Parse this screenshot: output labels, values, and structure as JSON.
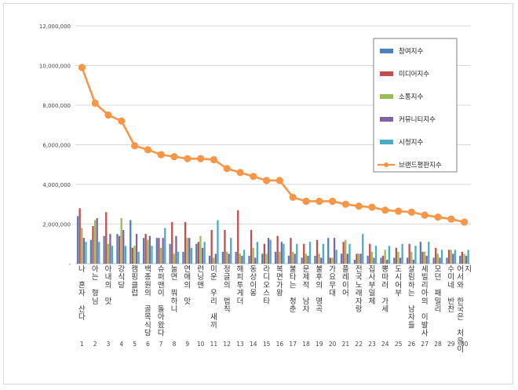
{
  "chart_data": {
    "type": "bar",
    "ylim": [
      0,
      12000000
    ],
    "yticks": [
      "12,000,000",
      "10,000,000",
      "8,000,000",
      "6,000,000",
      "4,000,000",
      "2,000,000",
      "-"
    ],
    "grid": true,
    "legend_position": "top-right",
    "categories": [
      "나 혼자 산다",
      "아는 형님",
      "아내의 맛",
      "강식당",
      "캠핑클럽",
      "백종원의 골목식당",
      "슈퍼맨이 돌아왔다",
      "놀면 뭐하니",
      "연애의 맛",
      "런닝맨",
      "미운 우리 새끼",
      "정글의 법칙",
      "해피투게더",
      "동상이몽",
      "라디오스타",
      "복면가왕",
      "불타는 청춘",
      "문제적 남자",
      "불후의 명곡",
      "가요무대",
      "플레이어",
      "전국노래자랑",
      "집사부일체",
      "뽕따러 가세",
      "도시어부",
      "살림하는 남자들",
      "세빌리아의 이발사",
      "모던 패밀리",
      "수미네 반찬",
      "어서와 한국은 처음이지"
    ],
    "numbers": [
      "1",
      "2",
      "3",
      "4",
      "5",
      "6",
      "7",
      "8",
      "9",
      "10",
      "11",
      "12",
      "13",
      "14",
      "15",
      "16",
      "17",
      "18",
      "19",
      "20",
      "21",
      "22",
      "23",
      "24",
      "25",
      "26",
      "27",
      "28",
      "29",
      "30"
    ],
    "series": [
      {
        "name": "참여지수",
        "color": "#4f81bd",
        "values": [
          2400000,
          1200000,
          1400000,
          1500000,
          2200000,
          1300000,
          1300000,
          1000000,
          600000,
          1000000,
          400000,
          600000,
          600000,
          400000,
          500000,
          600000,
          400000,
          300000,
          400000,
          1300000,
          500000,
          200000,
          400000,
          300000,
          300000,
          300000,
          1100000,
          300000,
          300000,
          400000
        ]
      },
      {
        "name": "미디어지수",
        "color": "#c0504d",
        "values": [
          2800000,
          1900000,
          2600000,
          1400000,
          800000,
          1500000,
          1300000,
          2100000,
          2100000,
          1100000,
          1700000,
          1700000,
          2700000,
          1700000,
          1000000,
          1400000,
          1300000,
          1000000,
          1200000,
          300000,
          1100000,
          500000,
          1000000,
          400000,
          800000,
          1000000,
          600000,
          800000,
          700000,
          600000
        ]
      },
      {
        "name": "소통지수",
        "color": "#9bbb59",
        "values": [
          1800000,
          2200000,
          1000000,
          2300000,
          900000,
          1200000,
          800000,
          500000,
          1300000,
          1400000,
          300000,
          600000,
          500000,
          800000,
          500000,
          600000,
          600000,
          500000,
          500000,
          300000,
          1200000,
          500000,
          600000,
          700000,
          600000,
          600000,
          600000,
          500000,
          700000,
          500000
        ]
      },
      {
        "name": "커뮤니티지수",
        "color": "#8064a2",
        "values": [
          1300000,
          2300000,
          1500000,
          1700000,
          1500000,
          1400000,
          1300000,
          1400000,
          1300000,
          800000,
          500000,
          500000,
          400000,
          300000,
          1300000,
          1100000,
          500000,
          400000,
          300000,
          1300000,
          500000,
          500000,
          300000,
          200000,
          300000,
          200000,
          400000,
          300000,
          500000,
          400000
        ]
      },
      {
        "name": "시청지수",
        "color": "#4bacc6",
        "values": [
          1100000,
          1100000,
          900000,
          900000,
          600000,
          900000,
          1800000,
          600000,
          800000,
          1100000,
          2200000,
          1300000,
          700000,
          1100000,
          1200000,
          1000000,
          1000000,
          1100000,
          1000000,
          700000,
          1000000,
          1500000,
          900000,
          900000,
          1000000,
          900000,
          1100000,
          700000,
          700000,
          700000
        ]
      },
      {
        "name": "브랜드평판지수",
        "color": "#f79646",
        "type": "line",
        "values": [
          9900000,
          8100000,
          7500000,
          7200000,
          5950000,
          5750000,
          5500000,
          5400000,
          5300000,
          5300000,
          5250000,
          4800000,
          4600000,
          4400000,
          4200000,
          4200000,
          3350000,
          3150000,
          3150000,
          3150000,
          3000000,
          2900000,
          2850000,
          2700000,
          2650000,
          2600000,
          2450000,
          2350000,
          2250000,
          2100000
        ]
      }
    ]
  }
}
